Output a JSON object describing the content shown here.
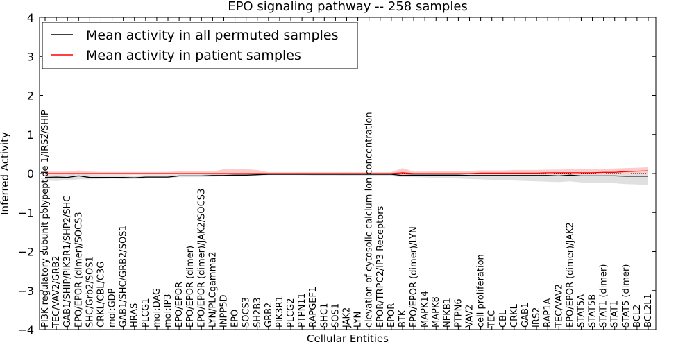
{
  "chart_data": {
    "type": "line",
    "title": "EPO signaling pathway -- 258 samples",
    "xlabel": "Cellular Entities",
    "ylabel": "Inferred Activity",
    "ylim": [
      -4,
      4
    ],
    "yticks": [
      4,
      3,
      2,
      1,
      0,
      -1,
      -2,
      -3,
      -4
    ],
    "ytick_labels": [
      "4",
      "3",
      "2",
      "1",
      "0",
      "−1",
      "−2",
      "−3",
      "−4"
    ],
    "legend": {
      "placement": "top-left"
    },
    "categories": [
      "PI3K regulatory subunit polypeptide 1/IRS2/SHIP",
      "TEC/VAV2/GRB2",
      "GAB1/SHIP/PIK3R1/SHP2/SHC",
      "EPO/EPOR (dimer)/SOCS3",
      "SHC/Grb2/SOS1",
      "CRKL/CBL/C3G",
      "mol:GDP",
      "GAB1/SHC/GRB2/SOS1",
      "HRAS",
      "PLCG1",
      "mol:DAG",
      "mol:IP3",
      "EPO/EPOR",
      "EPO/EPOR (dimer)",
      "EPO/EPOR (dimer)/JAK2/SOCS3",
      "LYN/PLCgamma2",
      "INPP5D",
      "EPO",
      "SOCS3",
      "SH2B3",
      "GRB2",
      "PIK3R1",
      "PLCG2",
      "PTPN11",
      "RAPGEF1",
      "SHC1",
      "SOS1",
      "JAK2",
      "LYN",
      "elevation of cytosolic calcium ion concentration",
      "EPOR/TRPC2/IP3 Receptors",
      "EPOR",
      "BTK",
      "EPO/EPOR (dimer)/LYN",
      "MAPK14",
      "MAPK8",
      "NFKB1",
      "PTPN6",
      "VAV2",
      "cell proliferation",
      "TEC",
      "CBL",
      "CRKL",
      "GAB1",
      "IRS2",
      "RAP1A",
      "TEC/VAV2",
      "EPO/EPOR (dimer)/JAK2",
      "STAT5A",
      "STAT5B",
      "STAT1 (dimer)",
      "STAT1",
      "STAT5 (dimer)",
      "BCL2",
      "BCL2L1"
    ],
    "series": [
      {
        "name": "Mean activity in all permuted samples",
        "color": "#000000",
        "band_color": "#bbbbbb",
        "values": [
          -0.1,
          -0.09,
          -0.1,
          -0.06,
          -0.1,
          -0.1,
          -0.1,
          -0.1,
          -0.11,
          -0.09,
          -0.09,
          -0.09,
          -0.06,
          -0.06,
          -0.06,
          -0.05,
          -0.05,
          -0.04,
          -0.04,
          -0.03,
          -0.02,
          -0.02,
          -0.02,
          -0.02,
          -0.02,
          -0.02,
          -0.02,
          -0.02,
          -0.02,
          -0.02,
          -0.02,
          -0.02,
          -0.05,
          -0.04,
          -0.04,
          -0.04,
          -0.04,
          -0.04,
          -0.05,
          -0.05,
          -0.05,
          -0.05,
          -0.05,
          -0.05,
          -0.05,
          -0.05,
          -0.06,
          -0.04,
          -0.06,
          -0.06,
          -0.06,
          -0.06,
          -0.07,
          -0.07,
          -0.07
        ],
        "lower": [
          -0.18,
          -0.19,
          -0.17,
          -0.15,
          -0.15,
          -0.14,
          -0.13,
          -0.14,
          -0.14,
          -0.13,
          -0.12,
          -0.12,
          -0.09,
          -0.09,
          -0.09,
          -0.08,
          -0.07,
          -0.06,
          -0.06,
          -0.05,
          -0.04,
          -0.04,
          -0.04,
          -0.04,
          -0.05,
          -0.05,
          -0.05,
          -0.06,
          -0.07,
          -0.07,
          -0.07,
          -0.07,
          -0.09,
          -0.09,
          -0.1,
          -0.11,
          -0.12,
          -0.13,
          -0.14,
          -0.15,
          -0.16,
          -0.17,
          -0.18,
          -0.19,
          -0.2,
          -0.21,
          -0.22,
          -0.2,
          -0.23,
          -0.24,
          -0.24,
          -0.25,
          -0.27,
          -0.28,
          -0.3
        ],
        "upper": [
          -0.04,
          -0.03,
          -0.03,
          0.0,
          -0.03,
          -0.04,
          -0.04,
          -0.04,
          -0.05,
          -0.04,
          -0.04,
          -0.04,
          -0.02,
          -0.02,
          -0.02,
          -0.01,
          -0.01,
          0.0,
          0.0,
          0.0,
          0.0,
          0.0,
          0.0,
          0.0,
          0.0,
          0.0,
          0.0,
          0.0,
          0.0,
          0.0,
          0.0,
          0.0,
          -0.01,
          -0.01,
          -0.01,
          -0.01,
          -0.01,
          -0.01,
          -0.01,
          -0.01,
          -0.01,
          -0.01,
          -0.01,
          -0.01,
          -0.01,
          -0.01,
          -0.01,
          -0.01,
          -0.01,
          -0.01,
          -0.01,
          -0.01,
          -0.01,
          -0.01,
          -0.01
        ]
      },
      {
        "name": "Mean activity in patient samples",
        "color": "#ff0000",
        "band_color": "#ff9999",
        "values": [
          0.0,
          0.0,
          0.0,
          0.0,
          0.0,
          0.0,
          0.0,
          0.0,
          0.0,
          0.0,
          0.0,
          0.0,
          0.0,
          0.0,
          0.0,
          0.0,
          0.0,
          0.0,
          0.0,
          0.0,
          0.0,
          0.0,
          0.0,
          0.0,
          0.0,
          0.0,
          0.0,
          0.0,
          0.0,
          0.0,
          0.0,
          0.0,
          0.02,
          0.0,
          0.0,
          0.0,
          0.0,
          0.0,
          0.0,
          0.01,
          0.01,
          0.01,
          0.01,
          0.01,
          0.01,
          0.02,
          0.02,
          0.02,
          0.02,
          0.02,
          0.03,
          0.03,
          0.05,
          0.06,
          0.07
        ],
        "lower": [
          -0.03,
          -0.03,
          -0.03,
          -0.02,
          -0.03,
          -0.03,
          -0.03,
          -0.03,
          -0.03,
          -0.03,
          -0.03,
          -0.03,
          -0.02,
          -0.02,
          -0.02,
          -0.03,
          -0.04,
          -0.04,
          -0.04,
          -0.03,
          -0.01,
          -0.01,
          -0.01,
          -0.01,
          -0.01,
          -0.01,
          -0.01,
          -0.01,
          -0.01,
          -0.01,
          -0.01,
          -0.01,
          -0.07,
          -0.02,
          -0.02,
          -0.02,
          -0.02,
          -0.02,
          -0.01,
          -0.01,
          -0.01,
          -0.01,
          -0.01,
          -0.01,
          -0.01,
          -0.01,
          -0.01,
          -0.02,
          -0.01,
          -0.01,
          -0.01,
          -0.01,
          0.0,
          0.0,
          0.0
        ],
        "upper": [
          0.05,
          0.05,
          0.05,
          0.08,
          0.05,
          0.04,
          0.04,
          0.04,
          0.04,
          0.04,
          0.04,
          0.04,
          0.06,
          0.06,
          0.06,
          0.05,
          0.11,
          0.11,
          0.11,
          0.09,
          0.03,
          0.03,
          0.03,
          0.03,
          0.03,
          0.03,
          0.03,
          0.03,
          0.03,
          0.03,
          0.03,
          0.03,
          0.14,
          0.05,
          0.05,
          0.06,
          0.06,
          0.06,
          0.07,
          0.08,
          0.08,
          0.08,
          0.09,
          0.09,
          0.09,
          0.1,
          0.1,
          0.11,
          0.11,
          0.11,
          0.12,
          0.13,
          0.14,
          0.15,
          0.16
        ]
      }
    ]
  }
}
